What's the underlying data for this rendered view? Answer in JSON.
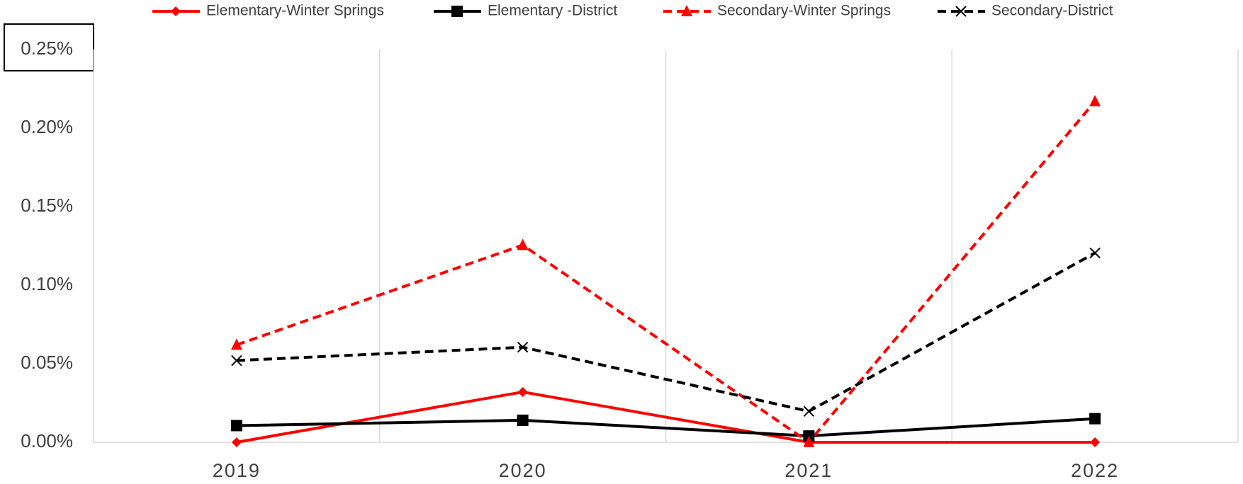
{
  "chart_data": {
    "type": "line",
    "categories": [
      "2019",
      "2020",
      "2021",
      "2022"
    ],
    "series": [
      {
        "name": "Elementary-Winter Springs",
        "color": "#ff0000",
        "dash": false,
        "marker": "diamond",
        "values": [
          0,
          0.032,
          0,
          0
        ]
      },
      {
        "name": "Elementary -District",
        "color": "#000000",
        "dash": false,
        "marker": "square",
        "values": [
          0.0106,
          0.014,
          0.004,
          0.015
        ]
      },
      {
        "name": "Secondary-Winter Springs",
        "color": "#ff0000",
        "dash": true,
        "marker": "triangle",
        "values": [
          0.062,
          0.1255,
          0,
          0.217
        ]
      },
      {
        "name": "Secondary-District",
        "color": "#000000",
        "dash": true,
        "marker": "x",
        "values": [
          0.052,
          0.0605,
          0.0197,
          0.1205
        ]
      }
    ],
    "ylim": [
      0,
      0.25
    ],
    "yticks": [
      {
        "value": 0,
        "label": "0.00%"
      },
      {
        "value": 0.05,
        "label": "0.05%"
      },
      {
        "value": 0.1,
        "label": "0.10%"
      },
      {
        "value": 0.15,
        "label": "0.15%"
      },
      {
        "value": 0.2,
        "label": "0.20%"
      },
      {
        "value": 0.25,
        "label": "0.25%"
      }
    ],
    "grid": "x",
    "legend": "top"
  }
}
